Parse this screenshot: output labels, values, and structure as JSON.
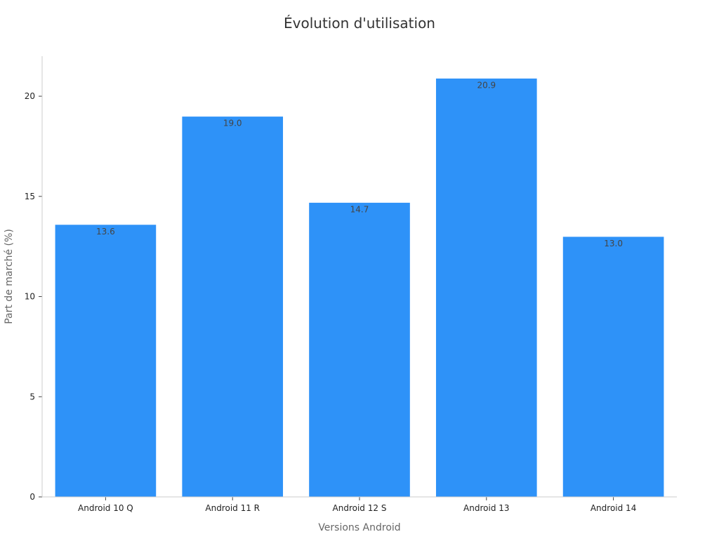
{
  "chart_data": {
    "type": "bar",
    "title": "Évolution d'utilisation",
    "xlabel": "Versions Android",
    "ylabel": "Part de marché (%)",
    "categories": [
      "Android 10 Q",
      "Android 11 R",
      "Android 12 S",
      "Android 13",
      "Android 14"
    ],
    "values": [
      13.6,
      19.0,
      14.7,
      20.9,
      13.0
    ],
    "data_labels": [
      "13.6",
      "19.0",
      "14.7",
      "20.9",
      "13.0"
    ],
    "ylim": [
      0,
      22
    ],
    "yticks": [
      0,
      5,
      10,
      15,
      20
    ],
    "grid": false,
    "colors": {
      "bar": "#2e92f8",
      "bar_edge": "#ffffff"
    }
  }
}
